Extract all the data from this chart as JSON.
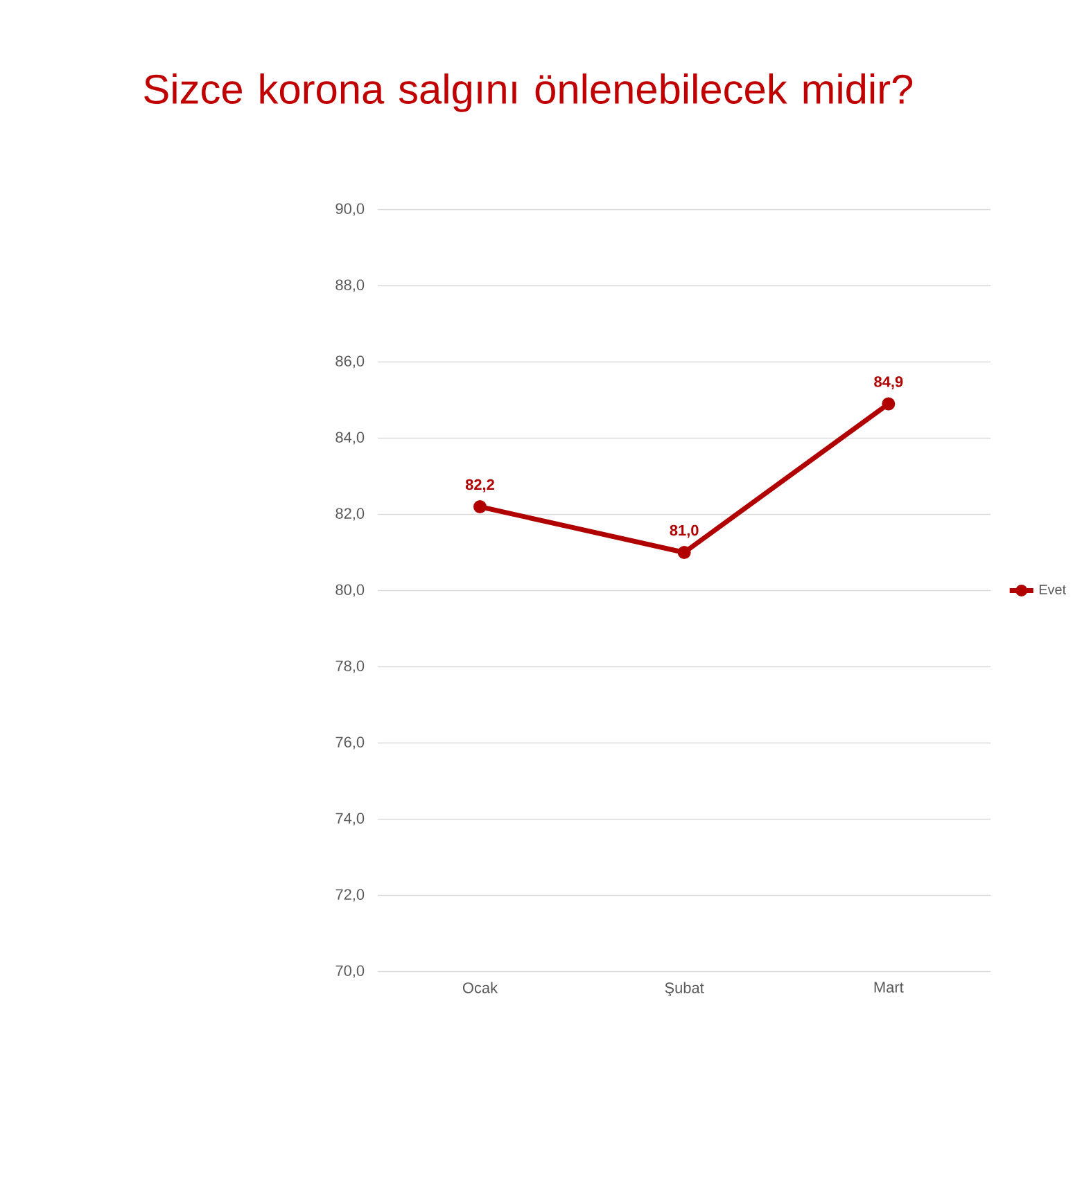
{
  "chart_data": {
    "type": "line",
    "title": "Sizce korona salgını önlenebilecek midir?",
    "categories": [
      "Ocak",
      "Şubat",
      "Mart"
    ],
    "series": [
      {
        "name": "Evet",
        "color": "#b00000",
        "values": [
          82.2,
          81.0,
          84.9
        ],
        "value_labels": [
          "82,2",
          "81,0",
          "84,9"
        ]
      }
    ],
    "ylim": [
      70,
      90
    ],
    "yticks": [
      {
        "value": 70,
        "label": "70,0"
      },
      {
        "value": 72,
        "label": "72,0"
      },
      {
        "value": 74,
        "label": "74,0"
      },
      {
        "value": 76,
        "label": "76,0"
      },
      {
        "value": 78,
        "label": "78,0"
      },
      {
        "value": 80,
        "label": "80,0"
      },
      {
        "value": 82,
        "label": "82,0"
      },
      {
        "value": 84,
        "label": "84,0"
      },
      {
        "value": 86,
        "label": "86,0"
      },
      {
        "value": 88,
        "label": "88,0"
      },
      {
        "value": 90,
        "label": "90,0"
      }
    ],
    "grid": "y",
    "legend": "right",
    "marker": "circle",
    "line_style": "solid"
  }
}
